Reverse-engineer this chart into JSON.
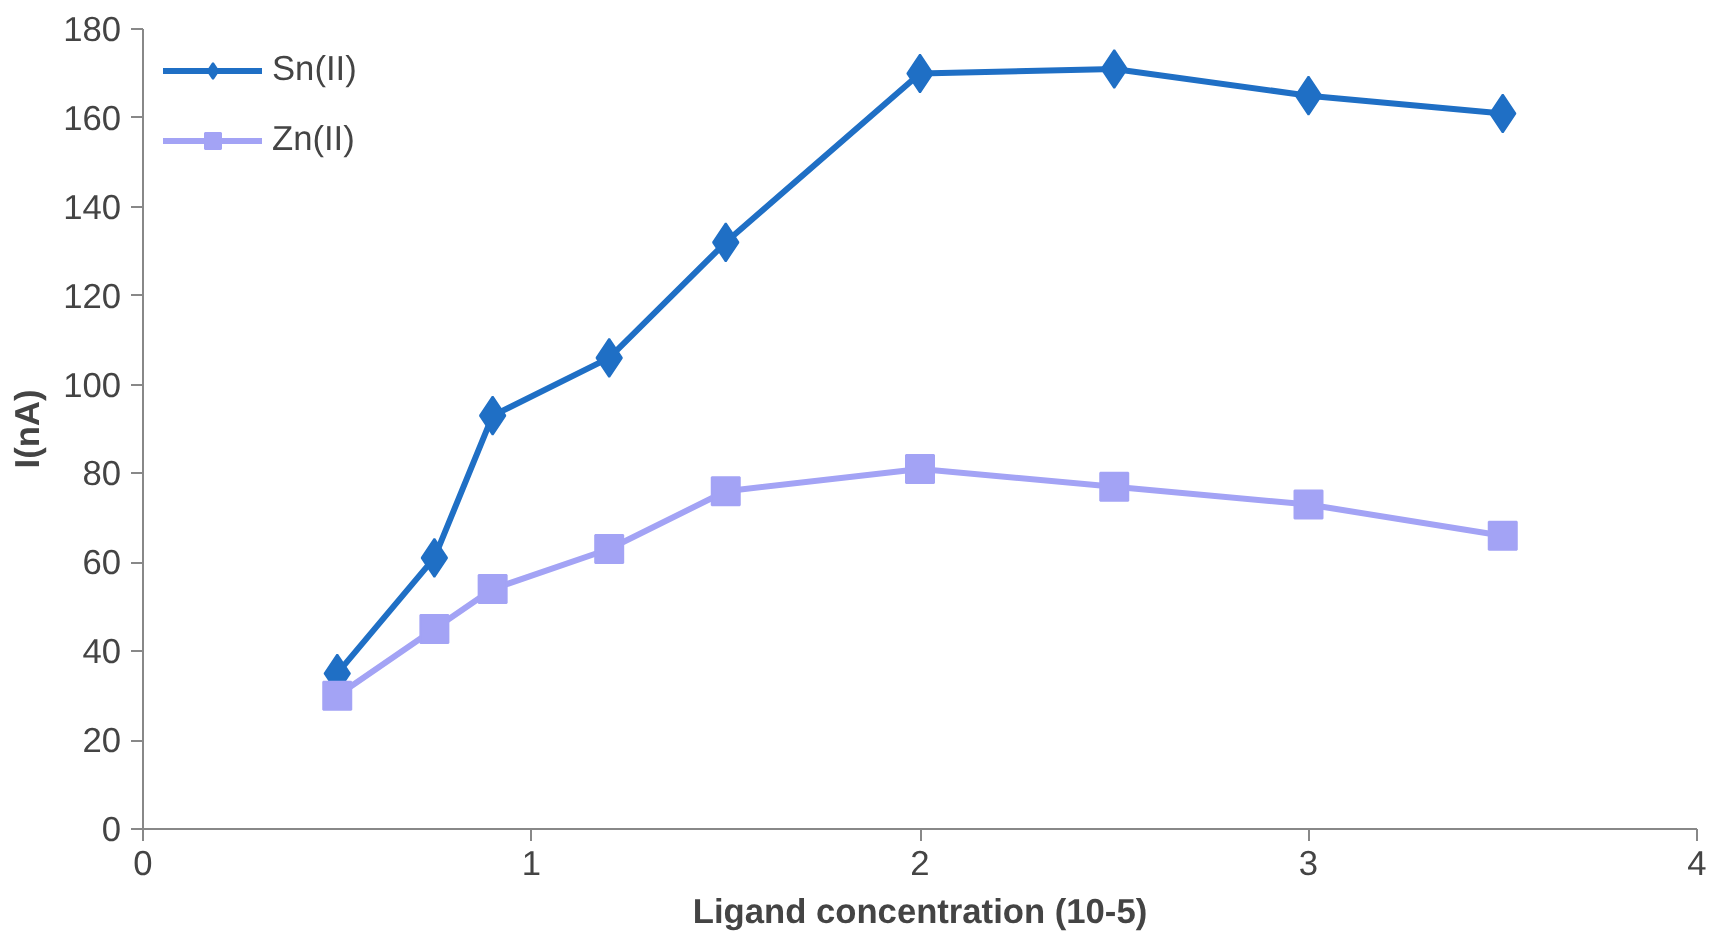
{
  "chart_data": {
    "type": "line",
    "xlabel": "Ligand concentration (10-5)",
    "ylabel": "I(nA)",
    "xlim": [
      0,
      4
    ],
    "xticks": [
      0,
      1,
      2,
      3,
      4
    ],
    "ylim": [
      0,
      180
    ],
    "yticks": [
      0,
      20,
      40,
      60,
      80,
      100,
      120,
      140,
      160,
      180
    ],
    "grid": false,
    "legend": "top left",
    "line_style": "solid",
    "x": [
      0.5,
      0.75,
      0.9,
      1.2,
      1.5,
      2,
      2.5,
      3,
      3.5
    ],
    "series": [
      {
        "name": "Sn(II)",
        "color": "#1f6fc5",
        "marker": "diamond",
        "values": [
          35,
          61,
          93,
          106,
          132,
          170,
          171,
          165,
          161
        ]
      },
      {
        "name": "Zn(II)",
        "color": "#a3a3f5",
        "marker": "square",
        "values": [
          30,
          45,
          54,
          63,
          76,
          81,
          77,
          73,
          66
        ]
      }
    ]
  }
}
